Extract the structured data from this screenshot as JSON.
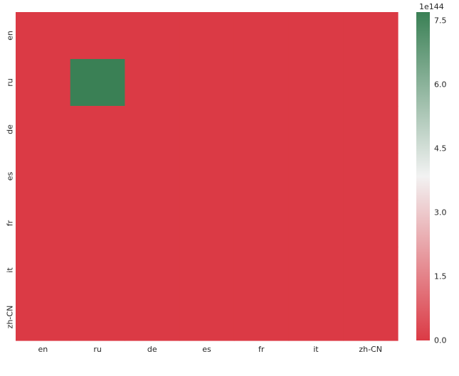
{
  "chart_data": {
    "type": "heatmap",
    "x_labels": [
      "en",
      "ru",
      "de",
      "es",
      "fr",
      "it",
      "zh-CN"
    ],
    "y_labels": [
      "en",
      "ru",
      "de",
      "es",
      "fr",
      "it",
      "zh-CN"
    ],
    "values": [
      [
        0,
        0,
        0,
        0,
        0,
        0,
        0
      ],
      [
        0,
        7.7,
        0,
        0,
        0,
        0,
        0
      ],
      [
        0,
        0,
        0,
        0,
        0,
        0,
        0
      ],
      [
        0,
        0,
        0,
        0,
        0,
        0,
        0
      ],
      [
        0,
        0,
        0,
        0,
        0,
        0,
        0
      ],
      [
        0,
        0,
        0,
        0,
        0,
        0,
        0
      ],
      [
        0,
        0,
        0,
        0,
        0,
        0,
        0
      ]
    ],
    "value_range": [
      0,
      7.7
    ],
    "colorbar": {
      "ticks": [
        0.0,
        1.5,
        3.0,
        4.5,
        6.0,
        7.5
      ],
      "tick_labels": [
        "0.0",
        "1.5",
        "3.0",
        "4.5",
        "6.0",
        "7.5"
      ],
      "offset_label": "1e144"
    },
    "colormap": {
      "low": "#db3a45",
      "mid": "#f2f2f2",
      "high": "#3a8055"
    },
    "grid": false
  }
}
